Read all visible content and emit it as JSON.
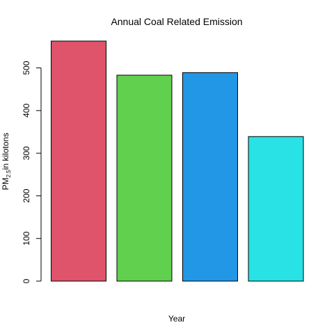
{
  "chart_data": {
    "type": "bar",
    "title": "Annual Coal Related Emission",
    "xlabel": "Year",
    "ylabel_main": "PM",
    "ylabel_sub": "2.5",
    "ylabel_rest": "in kilotons",
    "categories": [
      "",
      "",
      "",
      ""
    ],
    "values": [
      563,
      483,
      489,
      339
    ],
    "colors": [
      "#DF536B",
      "#61D04F",
      "#2297E6",
      "#28E2E5"
    ],
    "yticks": [
      0,
      100,
      200,
      300,
      400,
      500
    ],
    "ylim": [
      0,
      563
    ],
    "grid": false,
    "legend": "none"
  }
}
